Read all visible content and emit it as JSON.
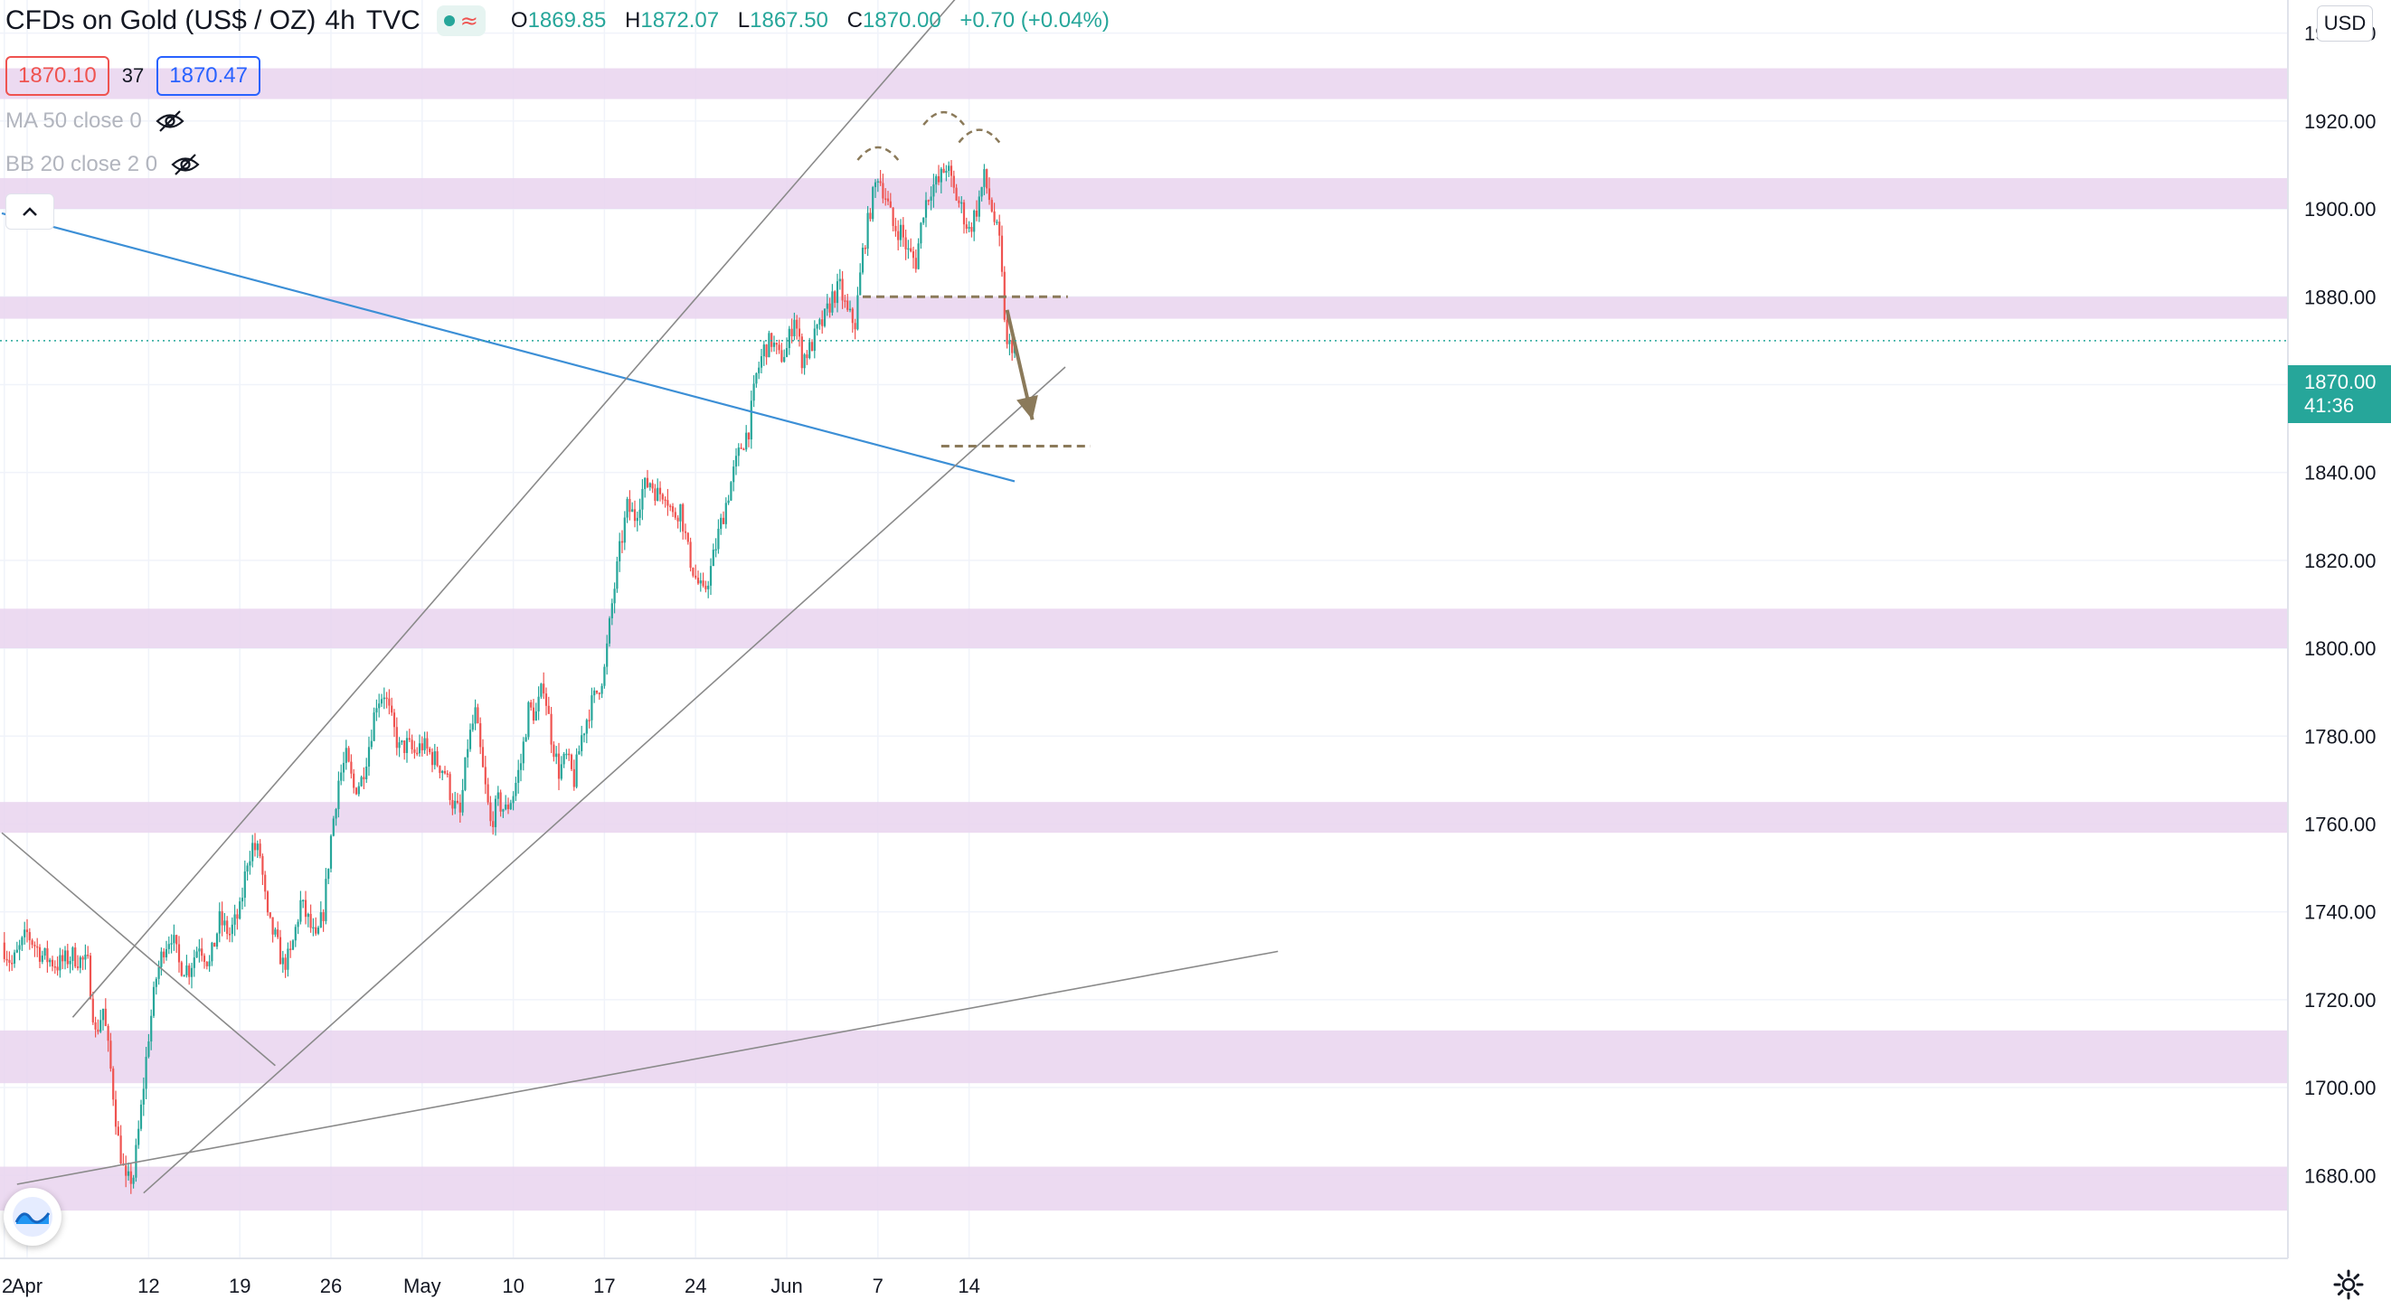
{
  "header": {
    "symbol_title": "CFDs on Gold (US$ / OZ)",
    "interval": "4h",
    "source": "TVC",
    "open_label": "O",
    "open": "1869.85",
    "high_label": "H",
    "high": "1872.07",
    "low_label": "L",
    "low": "1867.50",
    "close_label": "C",
    "close": "1870.00",
    "change": "+0.70 (+0.04%)",
    "wave_glyph": "≈"
  },
  "quote": {
    "bid": "1870.10",
    "spread": "37",
    "ask": "1870.47"
  },
  "indicators": [
    {
      "label": "MA 50 close 0",
      "icon": "eye-off-icon"
    },
    {
      "label": "BB 20 close 2 0",
      "icon": "eye-off-icon"
    }
  ],
  "currency": "USD",
  "last_price": {
    "value": "1870.00",
    "countdown": "41:36"
  },
  "colors": {
    "up": "#26a69a",
    "down": "#ef5350",
    "zone": "#e9d3ee",
    "trendline": "#8a8a8a",
    "blue_line": "#3c8fd6",
    "annotation": "#8b7a5a"
  },
  "chart_data": {
    "type": "candlestick",
    "y_axis": {
      "ylim": [
        1671,
        1967
      ],
      "ticks": [
        1680,
        1700,
        1720,
        1740,
        1760,
        1780,
        1800,
        1820,
        1840,
        1860,
        1880,
        1900,
        1920,
        1940
      ],
      "tick_labels": [
        "1680.00",
        "1700.00",
        "1720.00",
        "1740.00",
        "1760.00",
        "1780.00",
        "1800.00",
        "1820.00",
        "1840.00",
        "1860.00",
        "1880.00",
        "1900.00",
        "1920.00",
        "1940.00"
      ]
    },
    "x_axis": {
      "tick_labels": [
        "2",
        "Apr",
        "12",
        "19",
        "26",
        "May",
        "10",
        "17",
        "24",
        "Jun",
        "7",
        "14"
      ],
      "tick_index": [
        -3,
        6,
        54,
        90,
        126,
        162,
        198,
        234,
        270,
        306,
        342,
        378
      ],
      "index_range": [
        -4,
        396
      ],
      "grid": true
    },
    "anchors": [
      [
        -4,
        1733
      ],
      [
        0,
        1728
      ],
      [
        6,
        1735
      ],
      [
        12,
        1730
      ],
      [
        18,
        1728
      ],
      [
        24,
        1730
      ],
      [
        30,
        1728
      ],
      [
        33,
        1712
      ],
      [
        36,
        1718
      ],
      [
        39,
        1704
      ],
      [
        42,
        1688
      ],
      [
        45,
        1678
      ],
      [
        48,
        1680
      ],
      [
        51,
        1695
      ],
      [
        54,
        1712
      ],
      [
        57,
        1725
      ],
      [
        60,
        1732
      ],
      [
        63,
        1735
      ],
      [
        66,
        1728
      ],
      [
        70,
        1727
      ],
      [
        74,
        1733
      ],
      [
        78,
        1728
      ],
      [
        82,
        1738
      ],
      [
        86,
        1735
      ],
      [
        90,
        1740
      ],
      [
        93,
        1752
      ],
      [
        95,
        1755
      ],
      [
        98,
        1753
      ],
      [
        101,
        1738
      ],
      [
        104,
        1734
      ],
      [
        107,
        1728
      ],
      [
        110,
        1730
      ],
      [
        114,
        1742
      ],
      [
        117,
        1738
      ],
      [
        120,
        1733
      ],
      [
        123,
        1740
      ],
      [
        126,
        1757
      ],
      [
        129,
        1770
      ],
      [
        132,
        1775
      ],
      [
        135,
        1768
      ],
      [
        138,
        1770
      ],
      [
        141,
        1778
      ],
      [
        144,
        1788
      ],
      [
        147,
        1790
      ],
      [
        150,
        1783
      ],
      [
        153,
        1777
      ],
      [
        156,
        1778
      ],
      [
        159,
        1776
      ],
      [
        162,
        1778
      ],
      [
        165,
        1776
      ],
      [
        168,
        1774
      ],
      [
        171,
        1772
      ],
      [
        174,
        1765
      ],
      [
        177,
        1762
      ],
      [
        180,
        1778
      ],
      [
        183,
        1785
      ],
      [
        186,
        1772
      ],
      [
        189,
        1760
      ],
      [
        192,
        1765
      ],
      [
        195,
        1763
      ],
      [
        198,
        1767
      ],
      [
        201,
        1774
      ],
      [
        204,
        1786
      ],
      [
        207,
        1785
      ],
      [
        210,
        1792
      ],
      [
        213,
        1780
      ],
      [
        216,
        1772
      ],
      [
        219,
        1775
      ],
      [
        222,
        1770
      ],
      [
        225,
        1780
      ],
      [
        228,
        1786
      ],
      [
        231,
        1790
      ],
      [
        234,
        1795
      ],
      [
        237,
        1810
      ],
      [
        240,
        1822
      ],
      [
        243,
        1832
      ],
      [
        246,
        1830
      ],
      [
        249,
        1836
      ],
      [
        252,
        1838
      ],
      [
        255,
        1835
      ],
      [
        258,
        1836
      ],
      [
        261,
        1830
      ],
      [
        264,
        1832
      ],
      [
        267,
        1822
      ],
      [
        270,
        1816
      ],
      [
        273,
        1812
      ],
      [
        276,
        1818
      ],
      [
        279,
        1826
      ],
      [
        282,
        1833
      ],
      [
        285,
        1840
      ],
      [
        288,
        1846
      ],
      [
        291,
        1850
      ],
      [
        294,
        1862
      ],
      [
        297,
        1868
      ],
      [
        300,
        1870
      ],
      [
        303,
        1866
      ],
      [
        306,
        1868
      ],
      [
        309,
        1876
      ],
      [
        312,
        1866
      ],
      [
        315,
        1868
      ],
      [
        318,
        1872
      ],
      [
        321,
        1875
      ],
      [
        324,
        1880
      ],
      [
        327,
        1882
      ],
      [
        330,
        1876
      ],
      [
        333,
        1874
      ],
      [
        336,
        1890
      ],
      [
        339,
        1900
      ],
      [
        342,
        1908
      ],
      [
        345,
        1903
      ],
      [
        348,
        1896
      ],
      [
        351,
        1895
      ],
      [
        354,
        1890
      ],
      [
        357,
        1888
      ],
      [
        360,
        1900
      ],
      [
        363,
        1905
      ],
      [
        366,
        1906
      ],
      [
        369,
        1910
      ],
      [
        372,
        1904
      ],
      [
        375,
        1900
      ],
      [
        378,
        1895
      ],
      [
        381,
        1900
      ],
      [
        384,
        1907
      ],
      [
        387,
        1900
      ],
      [
        390,
        1892
      ],
      [
        393,
        1868
      ],
      [
        396,
        1870
      ]
    ],
    "last_close": 1870.0,
    "zones": [
      [
        1925,
        1932
      ],
      [
        1900,
        1907
      ],
      [
        1875,
        1880
      ],
      [
        1800,
        1809
      ],
      [
        1758,
        1765
      ],
      [
        1701,
        1713
      ],
      [
        1672,
        1682
      ]
    ],
    "trend_lines": [
      {
        "from": [
          -4,
          1899
        ],
        "to": [
          396,
          1838
        ],
        "color": "blue"
      },
      {
        "from": [
          24,
          1716
        ],
        "to": [
          406,
          1970
        ],
        "color": "gray"
      },
      {
        "from": [
          52,
          1676
        ],
        "to": [
          416,
          1864
        ],
        "color": "gray"
      },
      {
        "from": [
          -4,
          1758
        ],
        "to": [
          104,
          1705
        ],
        "color": "gray"
      },
      {
        "from": [
          2,
          1678
        ],
        "to": [
          500,
          1731
        ],
        "color": "gray"
      }
    ],
    "dashed_levels": [
      {
        "price": 1880,
        "from": 336,
        "to": 417
      },
      {
        "price": 1846,
        "from": 367,
        "to": 426
      }
    ],
    "shoulder_arcs": [
      {
        "from": 334,
        "to": 350,
        "top": 1914
      },
      {
        "from": 360,
        "to": 376,
        "top": 1922
      },
      {
        "from": 374,
        "to": 390,
        "top": 1918
      }
    ],
    "arrow": {
      "from": [
        393,
        1877
      ],
      "to": [
        403,
        1852
      ]
    }
  }
}
